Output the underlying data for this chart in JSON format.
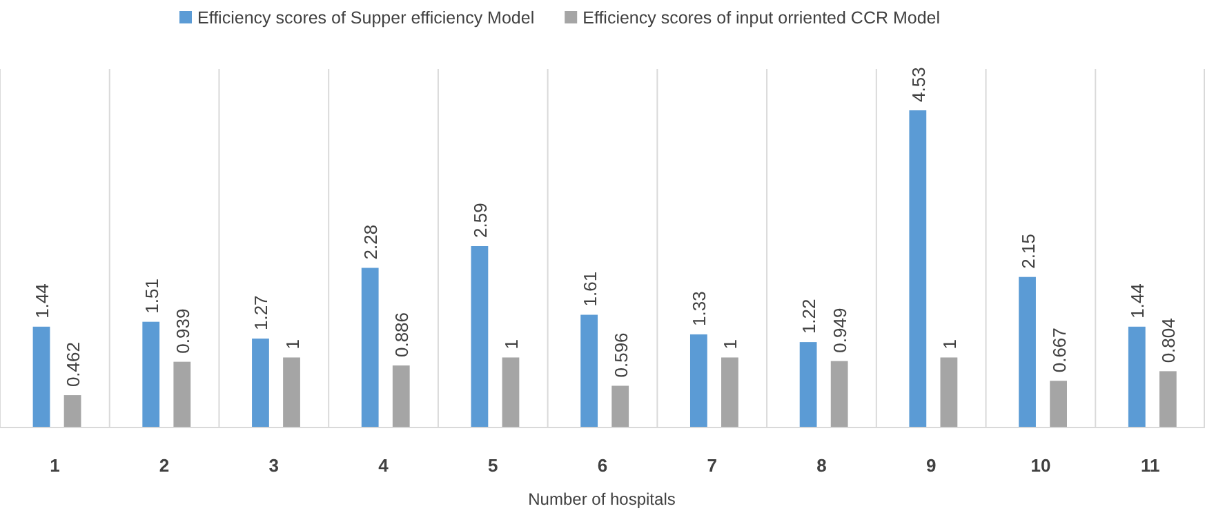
{
  "chart_data": {
    "type": "bar",
    "xlabel": "Number of hospitals",
    "categories": [
      "1",
      "2",
      "3",
      "4",
      "5",
      "6",
      "7",
      "8",
      "9",
      "10",
      "11"
    ],
    "series": [
      {
        "name": "Efficiency scores of Supper efficiency Model",
        "color": "#5b9bd5",
        "values": [
          1.44,
          1.51,
          1.27,
          2.28,
          2.59,
          1.61,
          1.33,
          1.22,
          4.53,
          2.15,
          1.44
        ]
      },
      {
        "name": "Efficiency scores of input orriented CCR Model",
        "color": "#a5a5a5",
        "values": [
          0.462,
          0.939,
          1,
          0.886,
          1,
          0.596,
          1,
          0.949,
          1,
          0.667,
          0.804
        ]
      }
    ],
    "data_labels": true,
    "grid": "x",
    "legend": "top"
  }
}
